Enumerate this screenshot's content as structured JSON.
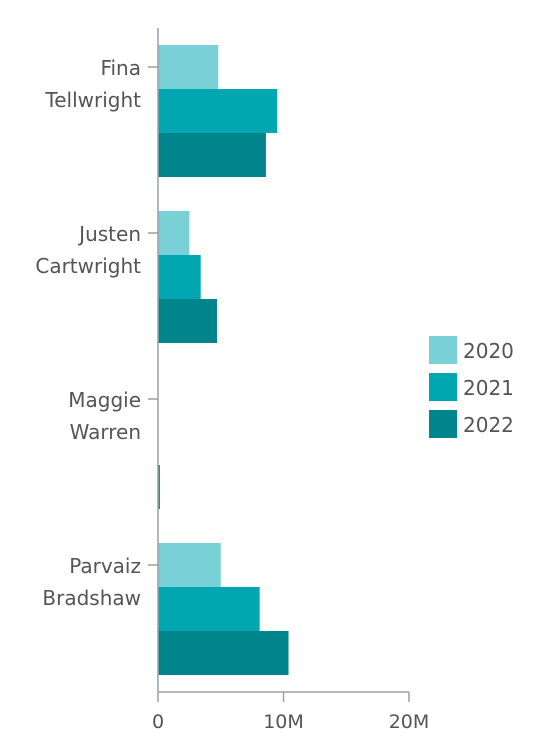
{
  "chart_data": {
    "type": "bar",
    "orientation": "horizontal",
    "categories": [
      [
        "Fina",
        "Tellwright"
      ],
      [
        "Justen",
        "Cartwright"
      ],
      [
        "Maggie",
        "Warren"
      ],
      [
        "Parvaiz",
        "Bradshaw"
      ]
    ],
    "series": [
      {
        "name": "2020",
        "color": "#79d0d6",
        "values": [
          4.8,
          2.5,
          0,
          5.0
        ]
      },
      {
        "name": "2021",
        "color": "#00a6b0",
        "values": [
          9.5,
          3.4,
          0,
          8.1
        ]
      },
      {
        "name": "2022",
        "color": "#00858d",
        "values": [
          8.6,
          4.7,
          0.15,
          10.4
        ]
      }
    ],
    "xlim": [
      0,
      20
    ],
    "xticks": [
      {
        "value": 0,
        "label": "0"
      },
      {
        "value": 10,
        "label": "10M"
      },
      {
        "value": 20,
        "label": "20M"
      }
    ],
    "units": "millions",
    "grid": false,
    "legend_position": "right"
  }
}
